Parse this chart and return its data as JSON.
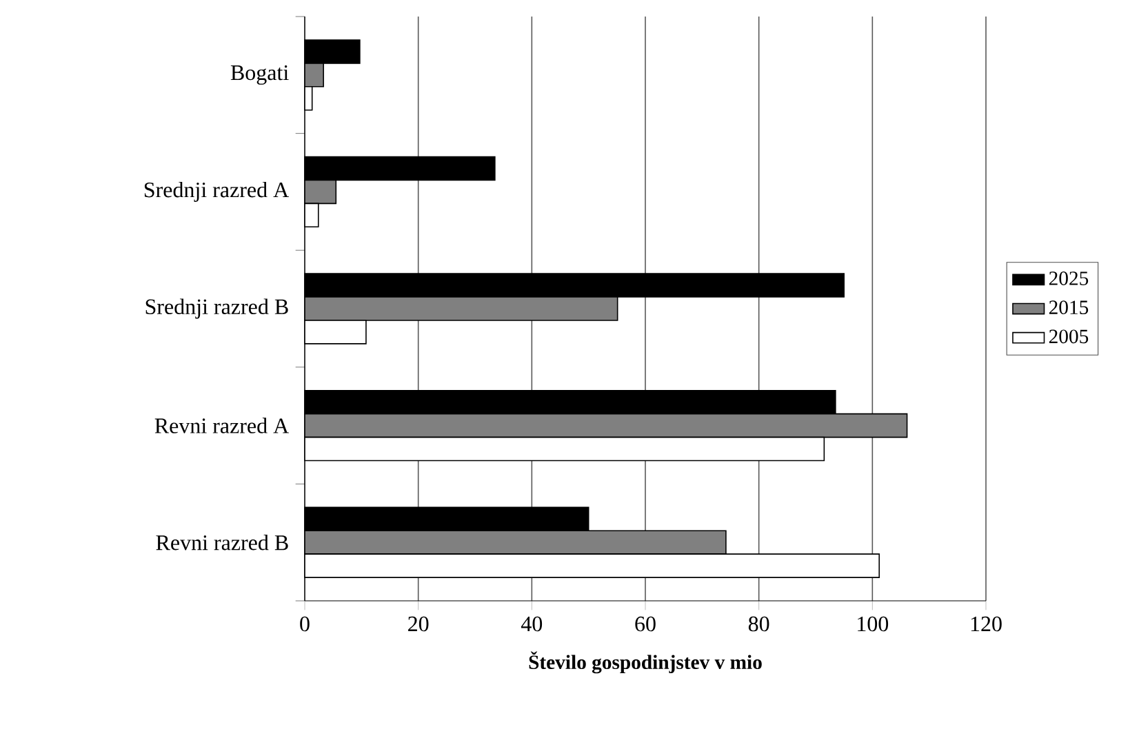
{
  "chart_data": {
    "type": "bar",
    "orientation": "horizontal",
    "xlabel": "**Število gospodinjstev v mio**",
    "categories": [
      "Bogati",
      "Srednji razred A",
      "Srednji razred B",
      "Revni razred A",
      "Revni razred B"
    ],
    "series": [
      {
        "name": "2025",
        "color": "#000000",
        "values": [
          9.7,
          33.5,
          95,
          93.5,
          50
        ]
      },
      {
        "name": "2015",
        "color": "#808080",
        "values": [
          3.3,
          5.5,
          55.1,
          106.1,
          74.2
        ]
      },
      {
        "name": "2005",
        "color": "#ffffff",
        "values": [
          1.3,
          2.4,
          10.8,
          91.5,
          101.2
        ]
      }
    ],
    "xlim": [
      0,
      120
    ],
    "xticks": [
      0,
      20,
      40,
      60,
      80,
      100,
      120
    ],
    "grid": "x",
    "legend": "right"
  }
}
